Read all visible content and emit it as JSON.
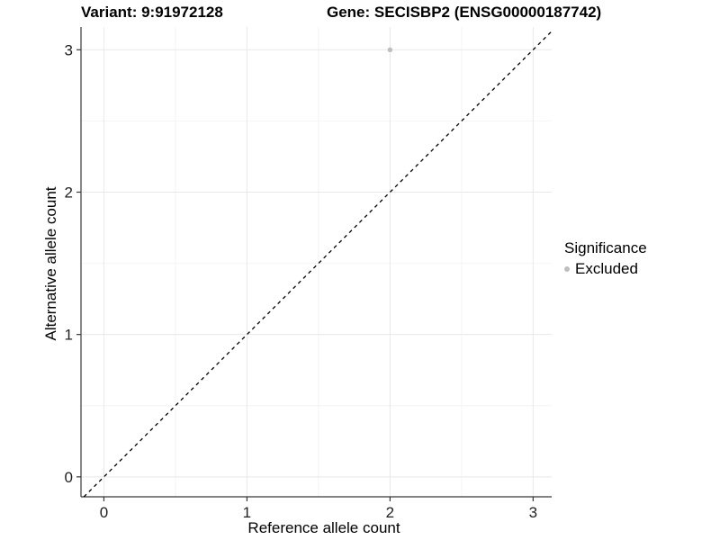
{
  "chart_data": {
    "type": "scatter",
    "title_left": "Variant: 9:91972128",
    "title_right": "Gene: SECISBP2 (ENSG00000187742)",
    "xlabel": "Reference allele count",
    "ylabel": "Alternative allele count",
    "xlim": [
      -0.16,
      3.13
    ],
    "ylim": [
      -0.14,
      3.16
    ],
    "x_ticks": [
      0,
      1,
      2,
      3
    ],
    "y_ticks": [
      0,
      1,
      2,
      3
    ],
    "x_minor_ticks": [
      0.5,
      1.5,
      2.5
    ],
    "y_minor_ticks": [
      0.5,
      1.5,
      2.5
    ],
    "grid": "major+minor",
    "identity_line": {
      "slope": 1,
      "intercept": 0,
      "style": "dashed",
      "color": "#000000"
    },
    "series": [
      {
        "name": "Excluded",
        "marker": "circle",
        "color": "#bebebe",
        "points": [
          [
            2,
            3
          ]
        ]
      }
    ],
    "legend": {
      "title": "Significance",
      "position": "right",
      "items": [
        {
          "label": "Excluded",
          "color": "#bebebe",
          "marker": "circle"
        }
      ]
    },
    "colors": {
      "background": "#ffffff",
      "axis_line": "#383838",
      "grid_major": "#e8e8e8",
      "grid_minor": "#f4f4f4",
      "point": "#bebebe",
      "text": "#1f1f1f"
    }
  }
}
